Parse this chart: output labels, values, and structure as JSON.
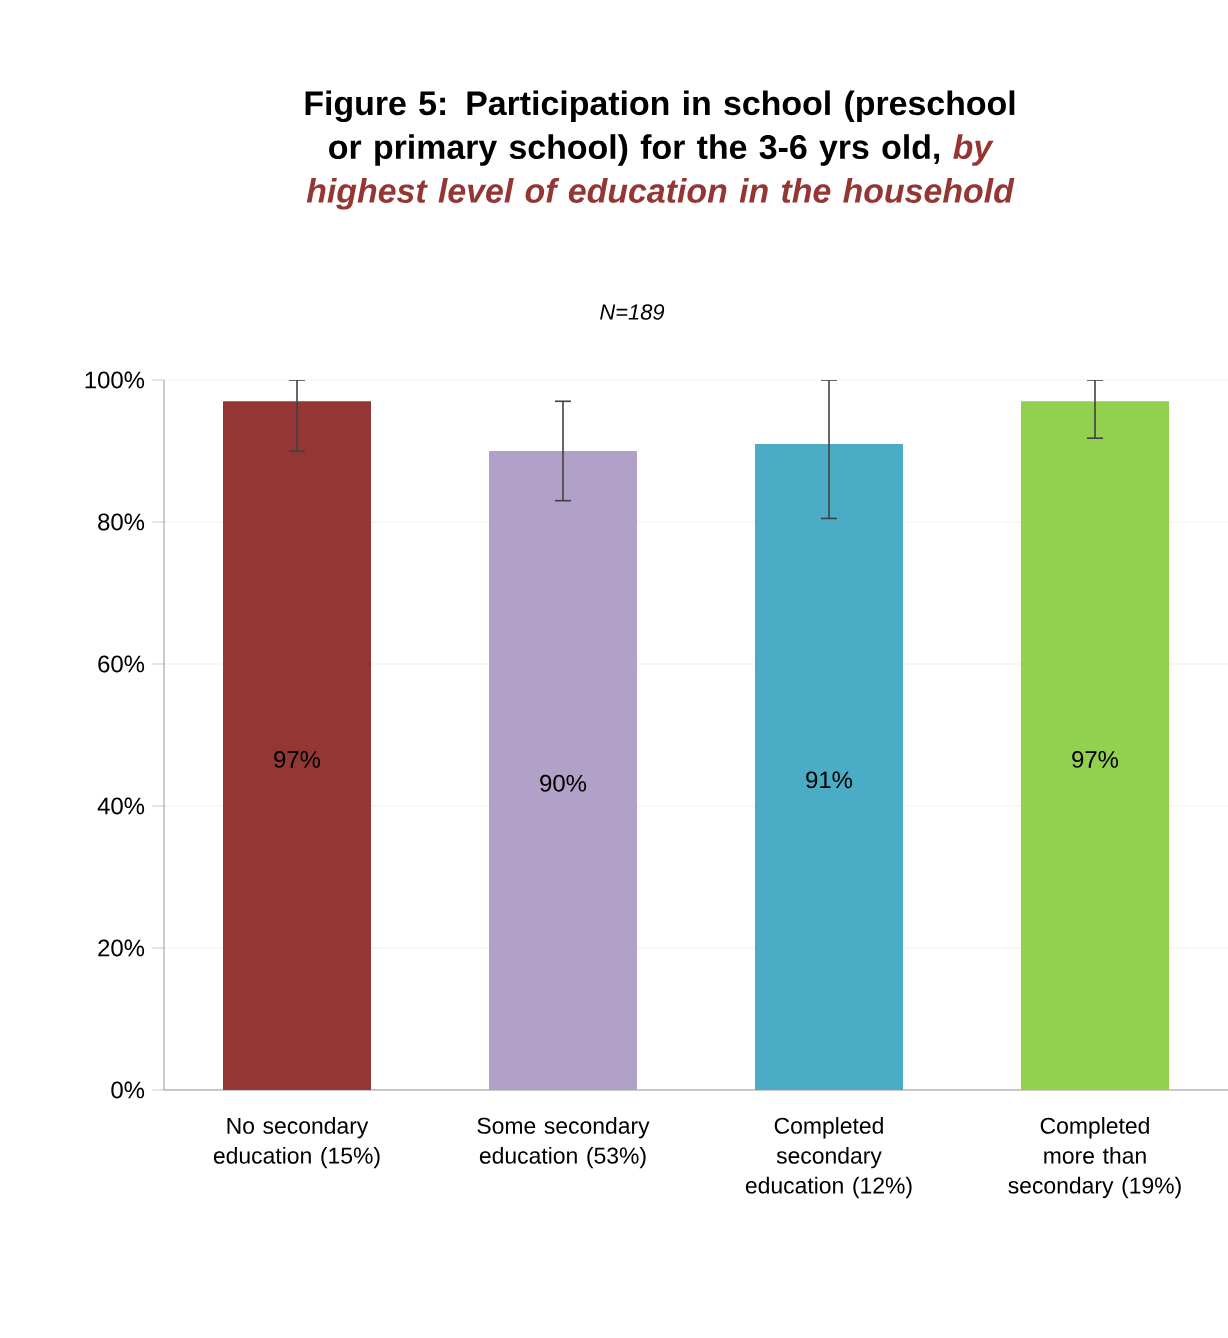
{
  "chart_data": {
    "type": "bar",
    "title": "Figure 5: Participation in school (preschool or primary school) for the 3-6 yrs old, *by highest level of education in the household*",
    "subtitle": "N=189",
    "categories": [
      "No secondary education (15%)",
      "Some secondary education (53%)",
      "Completed secondary education (12%)",
      "Completed more than secondary (19%)"
    ],
    "values": [
      97,
      90,
      91,
      97
    ],
    "value_labels": [
      "97%",
      "90%",
      "91%",
      "97%"
    ],
    "colors": [
      "#943634",
      "#b1a0c7",
      "#4bacc6",
      "#92d050"
    ],
    "errors": [
      [
        90,
        100
      ],
      [
        83,
        97
      ],
      [
        80.5,
        100
      ],
      [
        91.8,
        100
      ]
    ],
    "ylim": [
      0,
      100
    ],
    "yticks": [
      {
        "value": 0,
        "label": "0%"
      },
      {
        "value": 20,
        "label": "20%"
      },
      {
        "value": 40,
        "label": "40%"
      },
      {
        "value": 60,
        "label": "60%"
      },
      {
        "value": 80,
        "label": "80%"
      },
      {
        "value": 100,
        "label": "100%"
      }
    ],
    "grid": "y"
  }
}
